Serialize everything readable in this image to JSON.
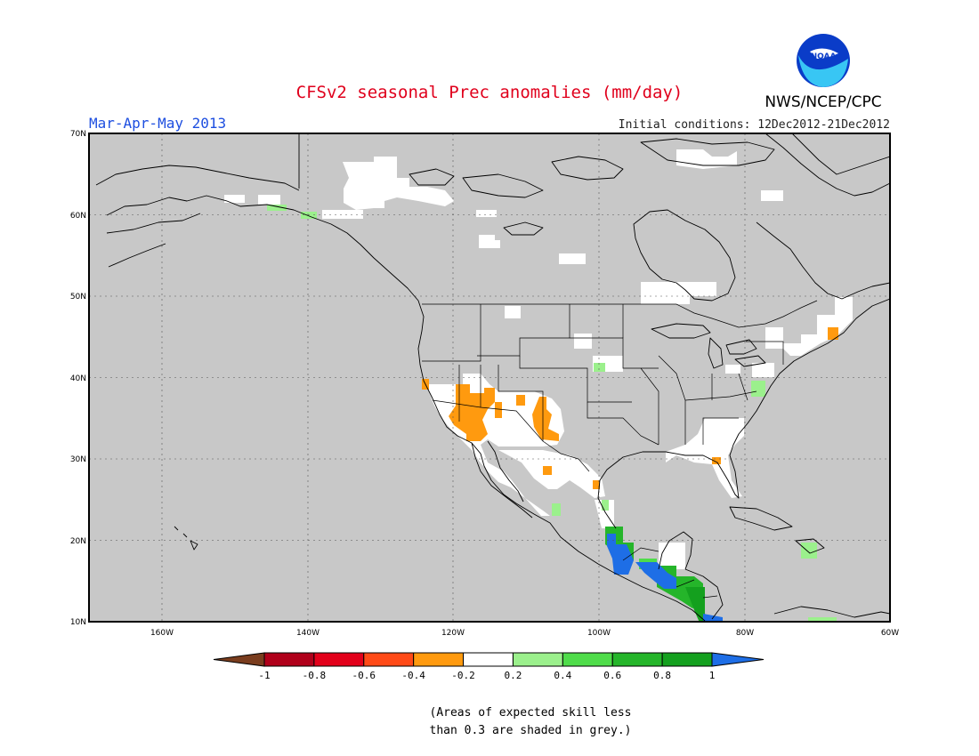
{
  "title": "CFSv2 seasonal Prec anomalies (mm/day)",
  "season": "Mar-Apr-May 2013",
  "initial_conditions": "Initial conditions: 12Dec2012-21Dec2012",
  "agency": "NWS/NCEP/CPC",
  "logo_text": "NOAA",
  "lat_labels": [
    "70N",
    "60N",
    "50N",
    "40N",
    "30N",
    "20N",
    "10N"
  ],
  "lon_labels": [
    "160W",
    "140W",
    "120W",
    "100W",
    "80W",
    "60W"
  ],
  "colorbar": {
    "tick_labels": [
      "-1",
      "-0.8",
      "-0.6",
      "-0.4",
      "-0.2",
      "0.2",
      "0.4",
      "0.6",
      "0.8",
      "1"
    ],
    "colors": {
      "below_min": "#7a3d1e",
      "bins": [
        "#b0001a",
        "#e2001a",
        "#ff4a17",
        "#ff9a0f",
        "#ffffff",
        "#9bf08c",
        "#4fdc4a",
        "#25b52a",
        "#14a01e"
      ],
      "above_max": "#1e6ee6"
    }
  },
  "colors": {
    "grey_mask": "#c8c8c8",
    "ocean_background": "#c8c8c8"
  },
  "note_lines": [
    "(Areas of expected skill less",
    "than 0.3 are shaded in grey.)"
  ]
}
